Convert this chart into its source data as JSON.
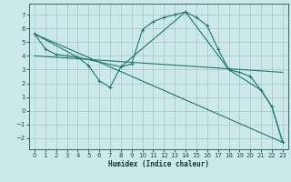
{
  "background_color": "#cce8e8",
  "grid_color": "#aacccc",
  "line_color": "#1a7a6e",
  "xlabel": "Humidex (Indice chaleur)",
  "ylim": [
    -2.8,
    7.8
  ],
  "xlim": [
    -0.5,
    23.5
  ],
  "yticks": [
    -2,
    -1,
    0,
    1,
    2,
    3,
    4,
    5,
    6,
    7
  ],
  "xticks": [
    0,
    1,
    2,
    3,
    4,
    5,
    6,
    7,
    8,
    9,
    10,
    11,
    12,
    13,
    14,
    15,
    16,
    17,
    18,
    19,
    20,
    21,
    22,
    23
  ],
  "line1_x": [
    0,
    1,
    2,
    3,
    4,
    5,
    6,
    7,
    8,
    9,
    10,
    11,
    12,
    13,
    14,
    15,
    16,
    17,
    18,
    19,
    20,
    21,
    22,
    23
  ],
  "line1_y": [
    5.6,
    4.5,
    4.1,
    4.0,
    3.9,
    3.3,
    2.2,
    1.7,
    3.2,
    3.4,
    5.9,
    6.5,
    6.8,
    7.0,
    7.2,
    6.8,
    6.2,
    4.5,
    3.0,
    2.8,
    2.5,
    1.5,
    0.3,
    -2.3
  ],
  "line2_x": [
    0,
    23
  ],
  "line2_y": [
    5.6,
    -2.3
  ],
  "line3_x": [
    0,
    23
  ],
  "line3_y": [
    4.0,
    2.8
  ],
  "line4_x": [
    0,
    4,
    8,
    14,
    18,
    21,
    22,
    23
  ],
  "line4_y": [
    5.6,
    3.9,
    3.2,
    7.2,
    3.0,
    1.5,
    0.3,
    -2.3
  ]
}
